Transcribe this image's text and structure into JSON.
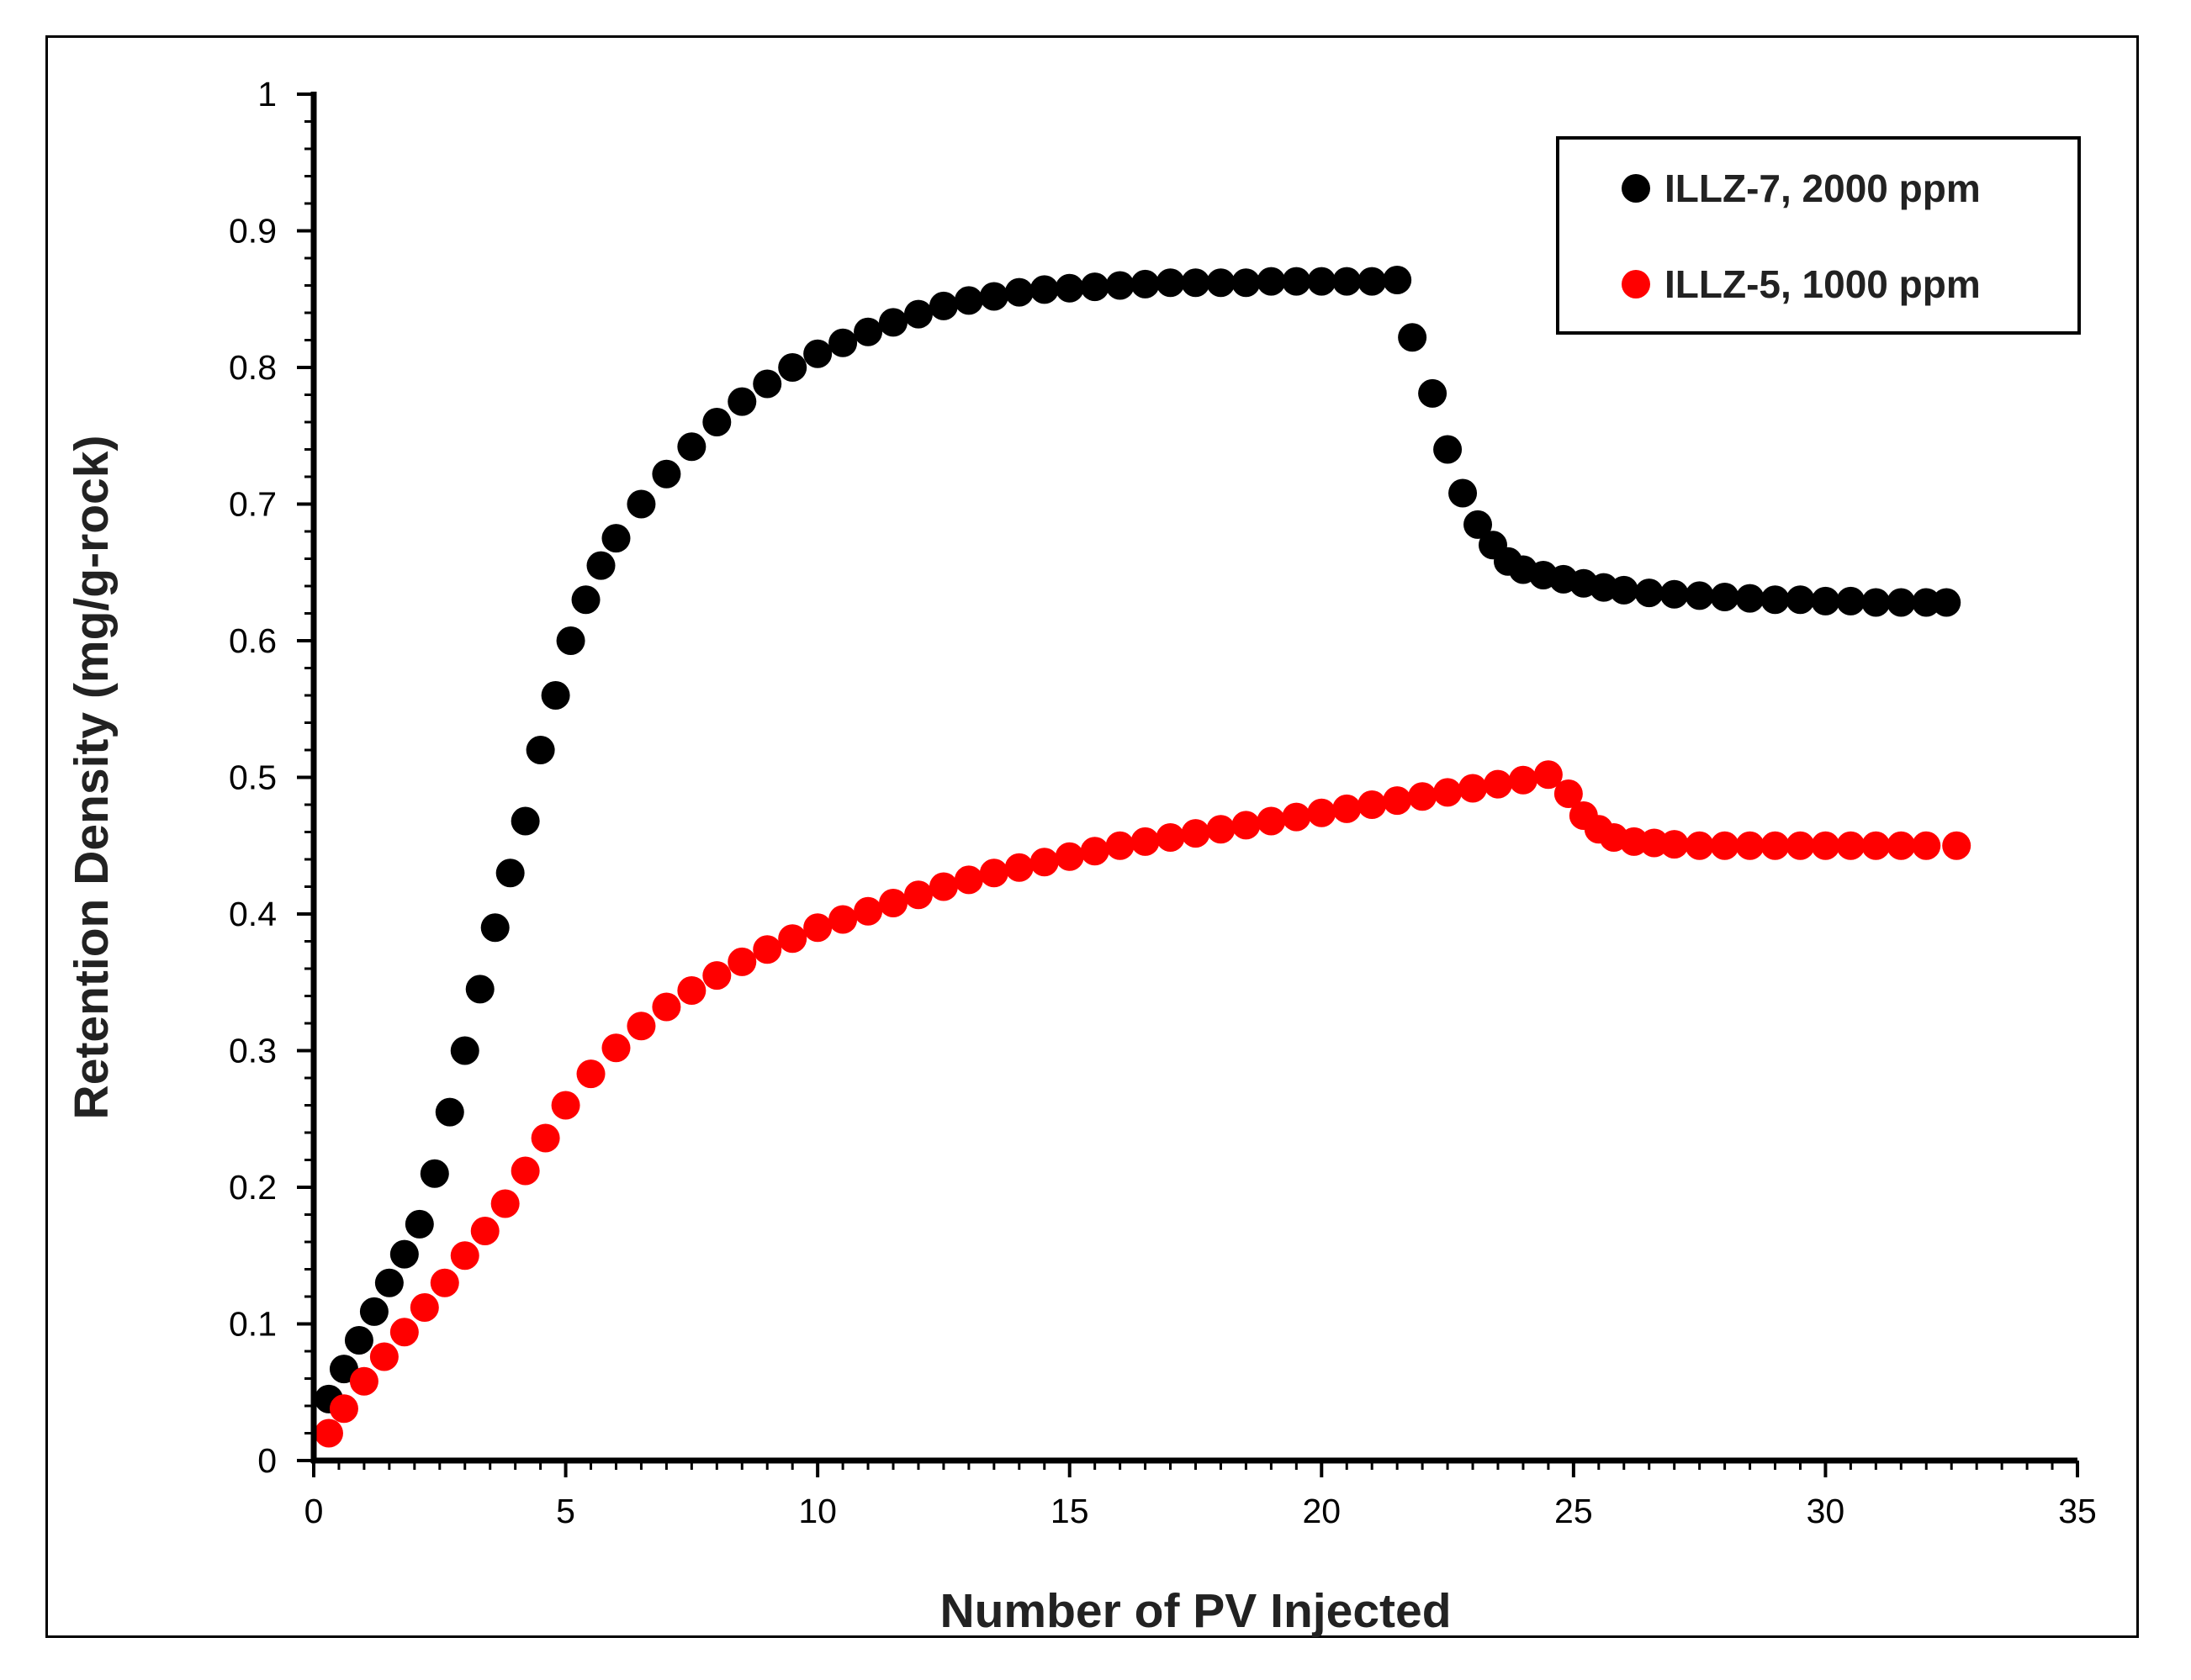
{
  "chart_data": {
    "type": "scatter",
    "title": "",
    "xlabel": "Number of PV Injected",
    "ylabel": "Retention Density (mg/g-rock)",
    "xlim": [
      0,
      35
    ],
    "ylim": [
      0,
      1
    ],
    "xticks": [
      "0",
      "5",
      "10",
      "15",
      "20",
      "25",
      "30",
      "35"
    ],
    "yticks": [
      "0",
      "0.1",
      "0.2",
      "0.3",
      "0.4",
      "0.5",
      "0.6",
      "0.7",
      "0.8",
      "0.9",
      "1"
    ],
    "grid": false,
    "legend_position": "top-right",
    "series": [
      {
        "name": "ILLZ-7, 2000 ppm",
        "color": "#000000",
        "x": [
          0.3,
          0.6,
          0.9,
          1.2,
          1.5,
          1.8,
          2.1,
          2.4,
          2.7,
          3.0,
          3.3,
          3.6,
          3.9,
          4.2,
          4.5,
          4.8,
          5.1,
          5.4,
          5.7,
          6.0,
          6.5,
          7.0,
          7.5,
          8.0,
          8.5,
          9.0,
          9.5,
          10.0,
          10.5,
          11.0,
          11.5,
          12.0,
          12.5,
          13.0,
          13.5,
          14.0,
          14.5,
          15.0,
          15.5,
          16.0,
          16.5,
          17.0,
          17.5,
          18.0,
          18.5,
          19.0,
          19.5,
          20.0,
          20.5,
          21.0,
          21.5,
          21.8,
          22.2,
          22.5,
          22.8,
          23.1,
          23.4,
          23.7,
          24.0,
          24.4,
          24.8,
          25.2,
          25.6,
          26.0,
          26.5,
          27.0,
          27.5,
          28.0,
          28.5,
          29.0,
          29.5,
          30.0,
          30.5,
          31.0,
          31.5,
          32.0,
          32.4
        ],
        "values": [
          0.045,
          0.067,
          0.088,
          0.109,
          0.13,
          0.151,
          0.173,
          0.21,
          0.255,
          0.3,
          0.345,
          0.39,
          0.43,
          0.468,
          0.52,
          0.56,
          0.6,
          0.63,
          0.655,
          0.675,
          0.7,
          0.722,
          0.742,
          0.76,
          0.775,
          0.788,
          0.8,
          0.81,
          0.818,
          0.826,
          0.833,
          0.839,
          0.845,
          0.849,
          0.852,
          0.855,
          0.857,
          0.858,
          0.859,
          0.86,
          0.861,
          0.862,
          0.862,
          0.862,
          0.862,
          0.863,
          0.863,
          0.863,
          0.863,
          0.863,
          0.864,
          0.822,
          0.781,
          0.74,
          0.708,
          0.685,
          0.67,
          0.658,
          0.652,
          0.648,
          0.645,
          0.642,
          0.639,
          0.637,
          0.635,
          0.634,
          0.633,
          0.632,
          0.631,
          0.63,
          0.63,
          0.629,
          0.629,
          0.628,
          0.628,
          0.628,
          0.628
        ]
      },
      {
        "name": "ILLZ-5, 1000 ppm",
        "color": "#ff0000",
        "x": [
          0.3,
          0.6,
          1.0,
          1.4,
          1.8,
          2.2,
          2.6,
          3.0,
          3.4,
          3.8,
          4.2,
          4.6,
          5.0,
          5.5,
          6.0,
          6.5,
          7.0,
          7.5,
          8.0,
          8.5,
          9.0,
          9.5,
          10.0,
          10.5,
          11.0,
          11.5,
          12.0,
          12.5,
          13.0,
          13.5,
          14.0,
          14.5,
          15.0,
          15.5,
          16.0,
          16.5,
          17.0,
          17.5,
          18.0,
          18.5,
          19.0,
          19.5,
          20.0,
          20.5,
          21.0,
          21.5,
          22.0,
          22.5,
          23.0,
          23.5,
          24.0,
          24.5,
          24.9,
          25.2,
          25.5,
          25.8,
          26.2,
          26.6,
          27.0,
          27.5,
          28.0,
          28.5,
          29.0,
          29.5,
          30.0,
          30.5,
          31.0,
          31.5,
          32.0,
          32.6
        ],
        "values": [
          0.02,
          0.038,
          0.058,
          0.076,
          0.094,
          0.112,
          0.13,
          0.15,
          0.168,
          0.188,
          0.212,
          0.236,
          0.26,
          0.283,
          0.302,
          0.318,
          0.332,
          0.344,
          0.355,
          0.365,
          0.374,
          0.382,
          0.39,
          0.396,
          0.402,
          0.408,
          0.414,
          0.42,
          0.425,
          0.43,
          0.434,
          0.438,
          0.442,
          0.446,
          0.45,
          0.453,
          0.456,
          0.459,
          0.462,
          0.465,
          0.468,
          0.471,
          0.474,
          0.477,
          0.48,
          0.483,
          0.486,
          0.489,
          0.492,
          0.495,
          0.498,
          0.502,
          0.488,
          0.472,
          0.462,
          0.456,
          0.453,
          0.452,
          0.451,
          0.45,
          0.45,
          0.45,
          0.45,
          0.45,
          0.45,
          0.45,
          0.45,
          0.45,
          0.45,
          0.45
        ]
      }
    ]
  }
}
